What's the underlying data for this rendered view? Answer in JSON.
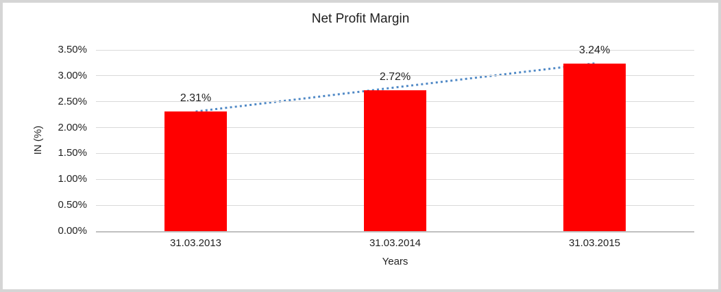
{
  "chart_data": {
    "type": "bar",
    "title": "Net Profit Margin",
    "xlabel": "Years",
    "ylabel": "IN (%)",
    "categories": [
      "31.03.2013",
      "31.03.2014",
      "31.03.2015"
    ],
    "values": [
      2.31,
      2.72,
      3.24
    ],
    "data_labels": [
      "2.31%",
      "2.72%",
      "3.24%"
    ],
    "ylim": [
      0,
      3.5
    ],
    "ytick_step": 0.5,
    "ytick_labels": [
      "0.00%",
      "0.50%",
      "1.00%",
      "1.50%",
      "2.00%",
      "2.50%",
      "3.00%",
      "3.50%"
    ],
    "grid": true,
    "legend": "none",
    "trendline": {
      "type": "linear",
      "style": "dotted"
    },
    "colors": {
      "bar": "#ff0000",
      "trendline": "#5089c6",
      "gridline": "#d9d9d9",
      "axis_line": "#bfbfbf",
      "text": "#1f1f1f",
      "frame_border": "#d5d5d5",
      "background": "#ffffff"
    }
  }
}
